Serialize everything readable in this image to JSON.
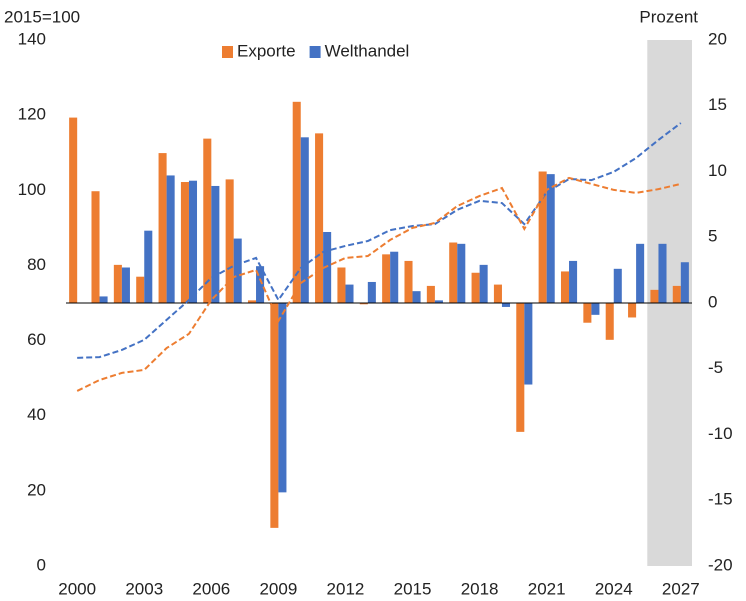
{
  "chart_data": {
    "type": "bar",
    "y_label": "2015=100",
    "y2_label": "Prozent",
    "categories": [
      "2000",
      null,
      null,
      "2003",
      null,
      null,
      "2006",
      null,
      null,
      "2009",
      null,
      null,
      "2012",
      null,
      null,
      "2015",
      null,
      null,
      "2018",
      null,
      null,
      "2021",
      null,
      null,
      "2024",
      null,
      null,
      "2027"
    ],
    "ylim": [
      0,
      140
    ],
    "yticks": [
      0,
      20,
      40,
      60,
      80,
      100,
      120,
      140
    ],
    "y2lim": [
      -20,
      20
    ],
    "y2ticks": [
      -20,
      -15,
      -10,
      -5,
      0,
      5,
      10,
      15,
      20
    ],
    "shade": {
      "from": 26,
      "to": 27,
      "color": "#d9d9d9"
    },
    "legend": "top",
    "series": [
      {
        "name": "Exporte",
        "color": "#ed7d31",
        "axis": "y2",
        "values": [
          14.1,
          8.5,
          2.9,
          2.0,
          11.4,
          9.2,
          12.5,
          9.4,
          0.2,
          -17.1,
          15.3,
          12.9,
          2.7,
          -0.1,
          3.7,
          3.2,
          1.3,
          4.6,
          2.3,
          1.4,
          -9.8,
          10.0,
          2.4,
          -1.5,
          -2.8,
          -1.1,
          1.0,
          1.3
        ]
      },
      {
        "name": "Welthandel",
        "color": "#4472c4",
        "axis": "y2",
        "values": [
          null,
          0.5,
          2.7,
          5.5,
          9.7,
          9.3,
          8.9,
          4.9,
          2.8,
          -14.4,
          12.6,
          5.4,
          1.4,
          1.6,
          3.9,
          0.9,
          0.2,
          4.5,
          2.9,
          -0.3,
          -6.2,
          9.8,
          3.2,
          -0.9,
          2.6,
          4.5,
          4.5,
          3.1
        ]
      },
      {
        "type": "line",
        "color": "#4472c4",
        "values": [
          55.4,
          55.6,
          57.5,
          60.2,
          65.5,
          70.8,
          76.7,
          79.9,
          82.0,
          70.8,
          79.3,
          83.6,
          85.2,
          86.5,
          89.4,
          90.5,
          91.0,
          94.8,
          97.2,
          96.6,
          91.0,
          99.5,
          103.0,
          102.7,
          104.9,
          108.6,
          113.4,
          117.9
        ]
      },
      {
        "type": "line",
        "color": "#ed7d31",
        "values": [
          46.6,
          49.5,
          51.4,
          52.2,
          58.0,
          61.8,
          70.8,
          76.9,
          78.8,
          65.2,
          75.3,
          79.3,
          82.0,
          82.5,
          86.8,
          90.0,
          91.3,
          95.8,
          98.5,
          100.6,
          89.7,
          100.1,
          103.3,
          101.7,
          100.1,
          99.3,
          100.3,
          101.7
        ]
      }
    ]
  }
}
